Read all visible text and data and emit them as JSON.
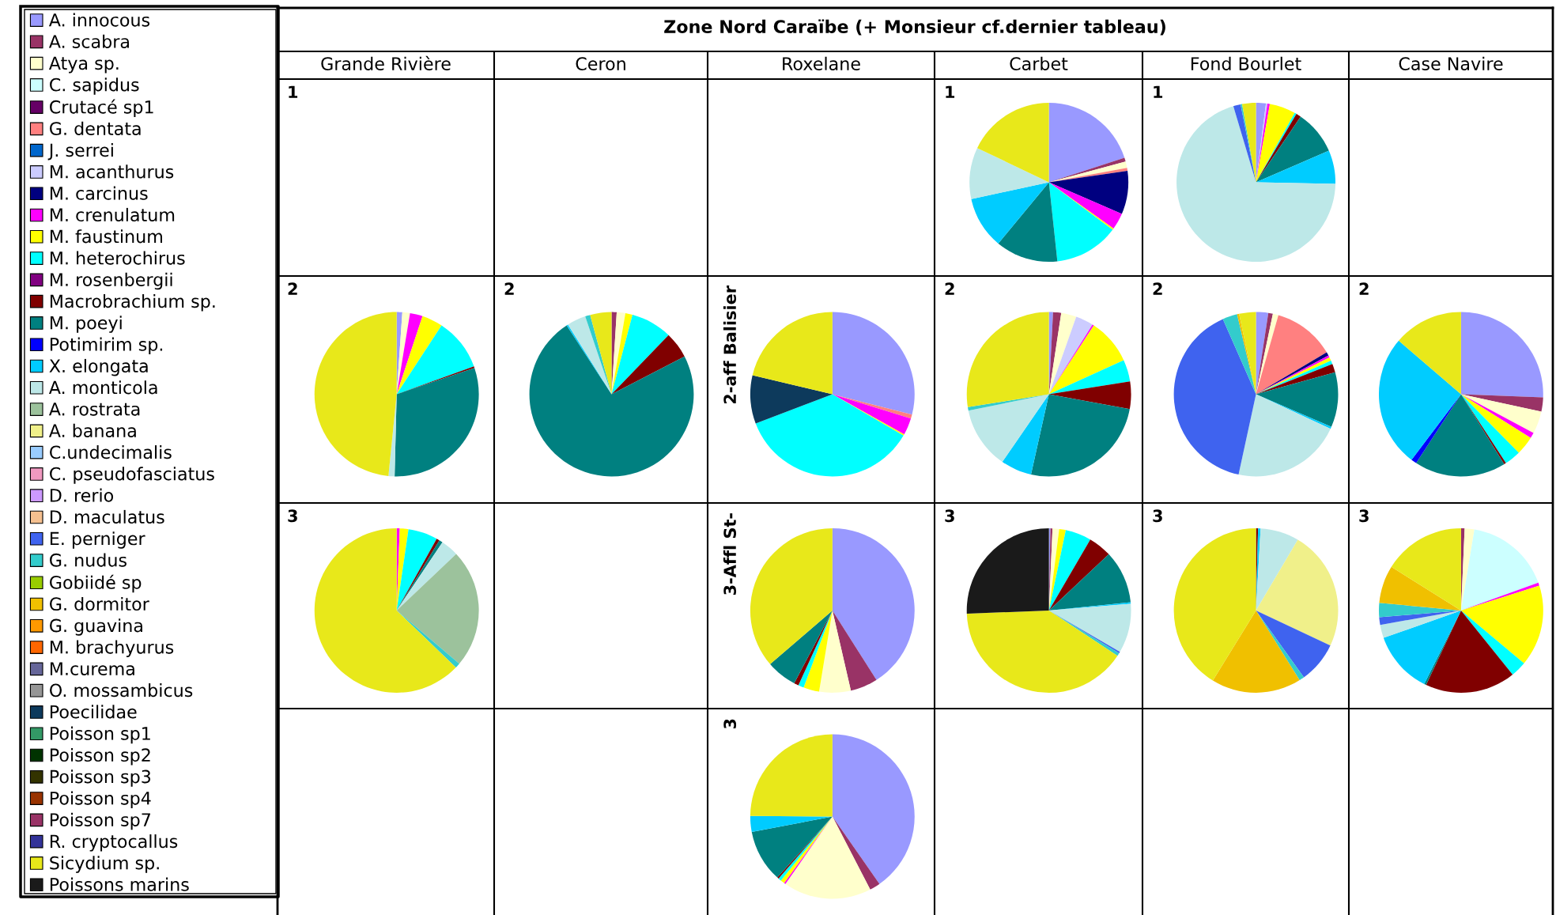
{
  "chart_data": {
    "type": "pie",
    "title": "Zone Nord Caraïbe (+ Monsieur cf.dernier tableau)",
    "annotations": [
      "Grande Rivière",
      "Ceron",
      "Roxelane",
      "Carbet",
      "Fond Bourlet",
      "Case Navire",
      "1"
    ],
    "legend": "left",
    "categories": [
      "A. innocous",
      "A. scabra",
      "Atya sp.",
      "C. sapidus",
      "Crutacé sp1",
      "G. dentata",
      "J. serrei",
      "M. acanthurus",
      "M. carcinus",
      "M. crenulatum",
      "M. faustinum",
      "M. heterochirus",
      "M. rosenbergii",
      "Macrobrachium sp.",
      "M. poeyi",
      "Potimirim sp.",
      "X. elongata",
      "A. monticola",
      "A. rostrata",
      "A. banana",
      "C.undecimalis",
      "C. pseudofasciatus",
      "D. rerio",
      "D. maculatus",
      "E. perniger",
      "G. nudus",
      "Gobiidé sp",
      "G. dormitor",
      "G. guavina",
      "M. brachyurus",
      "M.curema",
      "O. mossambicus",
      "Poecilidae",
      "Poisson sp1",
      "Poisson sp2",
      "Poisson sp3",
      "Poisson sp4",
      "Poisson sp7",
      "R. cryptocallus",
      "Sicydium sp.",
      "Poissons marins"
    ],
    "colors": [
      "#9999ff",
      "#993366",
      "#ffffcc",
      "#ccffff",
      "#660066",
      "#ff8080",
      "#0066cc",
      "#ccccff",
      "#000080",
      "#ff00ff",
      "#ffff00",
      "#00ffff",
      "#800080",
      "#800000",
      "#008080",
      "#0000ff",
      "#00ccff",
      "#bde8e8",
      "#9cc29c",
      "#f0f08a",
      "#99ccff",
      "#f099c0",
      "#cc99ff",
      "#f5c090",
      "#3f63ef",
      "#33cccc",
      "#99cc00",
      "#f0c000",
      "#ff9900",
      "#ff6600",
      "#666699",
      "#969696",
      "#0d3a5c",
      "#339966",
      "#003300",
      "#333300",
      "#993300",
      "#993366",
      "#333399",
      "#e8e81a",
      "#1a1a1a"
    ],
    "series": [
      {
        "name": "1",
        "values": [
          20,
          0.8,
          1.3,
          null,
          null,
          0.6,
          null,
          null,
          8.8,
          3.4,
          0.3,
          13.1,
          null,
          null,
          12.7,
          null,
          10.6,
          10.5,
          null,
          null,
          null,
          null,
          null,
          null,
          null,
          null,
          null,
          null,
          null,
          null,
          null,
          null,
          null,
          null,
          null,
          null,
          null,
          null,
          null,
          17.9,
          null
        ]
      },
      {
        "name": "1",
        "values": [
          2.0,
          null,
          null,
          null,
          null,
          null,
          null,
          0.3,
          null,
          0.5,
          5.3,
          0.4,
          null,
          1.0,
          9.0,
          null,
          6.8,
          70.1,
          null,
          null,
          null,
          null,
          null,
          null,
          1.5,
          0.3,
          null,
          null,
          null,
          null,
          null,
          null,
          null,
          null,
          null,
          null,
          null,
          null,
          null,
          2.8,
          null
        ]
      },
      {
        "name": "2",
        "values": [
          1.1,
          null,
          1.5,
          null,
          null,
          null,
          null,
          null,
          null,
          2.5,
          4.1,
          10.3,
          null,
          0.3,
          30.6,
          null,
          null,
          1.2,
          null,
          null,
          null,
          null,
          null,
          null,
          null,
          null,
          null,
          null,
          null,
          null,
          null,
          null,
          null,
          null,
          null,
          null,
          null,
          null,
          null,
          48.4,
          null
        ]
      },
      {
        "name": "2",
        "values": [
          null,
          1.0,
          1.7,
          null,
          null,
          null,
          null,
          null,
          null,
          null,
          1.4,
          8.1,
          null,
          5.2,
          73.4,
          null,
          0.3,
          3.7,
          null,
          null,
          null,
          null,
          null,
          null,
          null,
          1.0,
          null,
          null,
          null,
          null,
          null,
          null,
          null,
          null,
          null,
          null,
          null,
          null,
          null,
          4.2,
          null
        ]
      },
      {
        "name": "2-aff Balisier",
        "values": [
          29,
          null,
          null,
          null,
          null,
          0.8,
          null,
          null,
          null,
          3.3,
          0.3,
          35.8,
          null,
          null,
          null,
          null,
          null,
          null,
          null,
          null,
          null,
          null,
          null,
          null,
          null,
          null,
          null,
          null,
          null,
          null,
          null,
          null,
          9.5,
          null,
          null,
          null,
          null,
          null,
          null,
          21.3,
          null
        ]
      },
      {
        "name": "2",
        "values": [
          0.8,
          1.6,
          3.0,
          null,
          null,
          null,
          null,
          3.5,
          null,
          0.3,
          9.0,
          4.3,
          null,
          5.4,
          25.6,
          null,
          6.1,
          12.2,
          null,
          null,
          null,
          null,
          null,
          null,
          null,
          0.7,
          null,
          null,
          null,
          null,
          null,
          null,
          null,
          null,
          null,
          null,
          null,
          null,
          null,
          27.5,
          null
        ]
      },
      {
        "name": "2",
        "values": [
          2.4,
          0.9,
          1.1,
          null,
          null,
          12.1,
          null,
          null,
          0.7,
          0.4,
          0.7,
          0.7,
          null,
          1.7,
          10.8,
          null,
          0.4,
          21.5,
          null,
          null,
          null,
          null,
          null,
          null,
          40.0,
          2.9,
          null,
          0.4,
          null,
          null,
          null,
          null,
          null,
          null,
          null,
          null,
          null,
          null,
          null,
          3.3,
          null
        ]
      },
      {
        "name": "2",
        "values": [
          25.6,
          2.8,
          4.4,
          null,
          null,
          null,
          null,
          null,
          null,
          1.1,
          3.7,
          3.2,
          null,
          0.4,
          18.0,
          1.1,
          26.0,
          null,
          null,
          null,
          null,
          null,
          null,
          null,
          null,
          null,
          null,
          null,
          null,
          null,
          null,
          null,
          null,
          null,
          null,
          null,
          null,
          null,
          null,
          13.7,
          null
        ]
      },
      {
        "name": "3",
        "values": [
          null,
          null,
          null,
          null,
          null,
          null,
          null,
          null,
          null,
          0.6,
          1.7,
          5.8,
          null,
          0.6,
          0.7,
          null,
          null,
          3.5,
          23.3,
          null,
          null,
          null,
          null,
          null,
          null,
          1.0,
          null,
          null,
          null,
          null,
          null,
          null,
          null,
          null,
          null,
          null,
          null,
          null,
          null,
          62.8,
          null
        ]
      },
      {
        "name": "3-Affl St-",
        "values": [
          41.0,
          5.4,
          6.2,
          null,
          null,
          null,
          null,
          null,
          null,
          null,
          3.1,
          1.1,
          null,
          0.9,
          6.0,
          null,
          null,
          null,
          null,
          null,
          null,
          null,
          null,
          null,
          null,
          null,
          null,
          null,
          null,
          null,
          null,
          null,
          null,
          null,
          null,
          null,
          null,
          null,
          null,
          36.3,
          null
        ]
      },
      {
        "name": "3",
        "values": [
          0.3,
          0.4,
          1.3,
          null,
          null,
          null,
          null,
          null,
          null,
          null,
          1.3,
          5.1,
          null,
          4.6,
          10.4,
          null,
          0.3,
          9.7,
          null,
          null,
          null,
          null,
          null,
          null,
          0.3,
          0.6,
          null,
          null,
          null,
          null,
          null,
          null,
          null,
          null,
          null,
          null,
          null,
          null,
          null,
          40.1,
          25.6
        ]
      },
      {
        "name": "3",
        "values": [
          null,
          null,
          null,
          null,
          null,
          null,
          null,
          null,
          null,
          null,
          null,
          null,
          null,
          0.4,
          null,
          null,
          0.5,
          7.6,
          null,
          23.5,
          null,
          null,
          null,
          null,
          8.1,
          1.0,
          null,
          17.7,
          null,
          null,
          null,
          null,
          null,
          null,
          null,
          null,
          null,
          null,
          null,
          41.2,
          null
        ]
      },
      {
        "name": "3",
        "values": [
          null,
          0.7,
          1.9,
          16.9,
          null,
          null,
          null,
          null,
          null,
          0.6,
          16.0,
          3.1,
          null,
          17.8,
          0.4,
          null,
          12.2,
          2.6,
          null,
          null,
          null,
          null,
          null,
          null,
          1.5,
          2.8,
          null,
          7.4,
          null,
          null,
          null,
          null,
          null,
          null,
          null,
          null,
          null,
          null,
          null,
          16.1,
          null
        ]
      },
      {
        "name": "3",
        "values": [
          40.3,
          2.1,
          17.3,
          null,
          null,
          null,
          null,
          null,
          null,
          0.3,
          0.8,
          0.6,
          null,
          0.3,
          10.3,
          null,
          3.1,
          null,
          null,
          null,
          null,
          null,
          null,
          null,
          null,
          null,
          null,
          null,
          null,
          null,
          null,
          null,
          null,
          null,
          null,
          null,
          null,
          null,
          null,
          24.9,
          null
        ]
      }
    ]
  }
}
